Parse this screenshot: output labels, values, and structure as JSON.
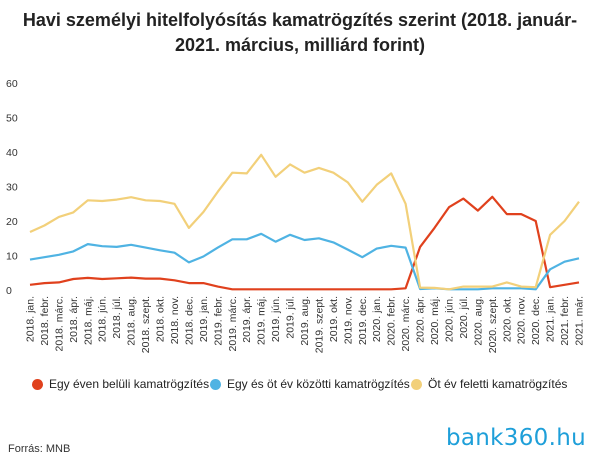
{
  "logo_text": "bank360.hu",
  "source": "Forrás: MNB",
  "chart_data": {
    "type": "line",
    "title": "Havi személyi hitelfolyósítás kamatrögzítés szerint (2018. január-2021. március, milliárd forint)",
    "xlabel": "",
    "ylabel": "",
    "ylim": [
      0,
      60
    ],
    "yticks": [
      0,
      10,
      20,
      30,
      40,
      50,
      60
    ],
    "grid": false,
    "legend": "bottom",
    "categories": [
      "2018. jan.",
      "2018. febr.",
      "2018. márc.",
      "2018. ápr.",
      "2018. máj.",
      "2018. jún.",
      "2018. júl.",
      "2018. aug.",
      "2018. szept.",
      "2018. okt.",
      "2018. nov.",
      "2018. dec.",
      "2019. jan.",
      "2019. febr.",
      "2019. márc.",
      "2019. ápr.",
      "2019. máj.",
      "2019. jún.",
      "2019. júl.",
      "2019. aug.",
      "2019. szept.",
      "2019. okt.",
      "2019. nov.",
      "2019. dec.",
      "2020. jan.",
      "2020. febr.",
      "2020. márc.",
      "2020. ápr.",
      "2020. máj.",
      "2020. jún.",
      "2020. júl.",
      "2020. aug.",
      "2020. szept.",
      "2020. okt.",
      "2020. nov.",
      "2020. dec.",
      "2021. jan.",
      "2021. febr.",
      "2021. már."
    ],
    "series": [
      {
        "name": "Egy éven belüli kamatrögzítés",
        "color": "#e0411d",
        "values": [
          1.5,
          2,
          2.2,
          3.2,
          3.5,
          3.2,
          3.4,
          3.6,
          3.3,
          3.3,
          2.8,
          2,
          2,
          1,
          0.2,
          0.2,
          0.2,
          0.2,
          0.2,
          0.2,
          0.2,
          0.2,
          0.2,
          0.2,
          0.2,
          0.2,
          0.5,
          12.5,
          18,
          24,
          26.5,
          23,
          27,
          22,
          22,
          20,
          0.8,
          1.5,
          2.2
        ]
      },
      {
        "name": "Egy és öt év közötti kamatrögzítés",
        "color": "#4fb3e3",
        "values": [
          8.8,
          9.5,
          10.2,
          11.2,
          13.3,
          12.7,
          12.5,
          13.1,
          12.3,
          11.5,
          10.8,
          8,
          9.7,
          12.3,
          14.7,
          14.7,
          16.3,
          14,
          16,
          14.5,
          15,
          13.8,
          11.7,
          9.5,
          12,
          12.8,
          12.3,
          0.3,
          0.5,
          0.2,
          0.2,
          0.2,
          0.5,
          0.5,
          0.5,
          0.2,
          6,
          8.2,
          9.2
        ]
      },
      {
        "name": "Öt év feletti kamatrögzítés",
        "color": "#f2d07a",
        "values": [
          16.8,
          18.7,
          21.2,
          22.5,
          26,
          25.8,
          26.2,
          26.9,
          26,
          25.8,
          25,
          18,
          22.6,
          28.5,
          34,
          33.8,
          39.2,
          32.8,
          36.4,
          34,
          35.4,
          34,
          31.2,
          25.6,
          30.5,
          33.8,
          25,
          0.7,
          0.6,
          0.2,
          1,
          1,
          1,
          2.2,
          1,
          0.8,
          16,
          20,
          25.6
        ]
      }
    ]
  }
}
